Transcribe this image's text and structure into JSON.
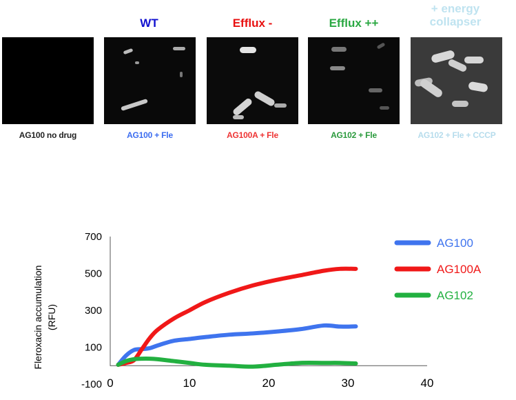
{
  "panels": [
    {
      "heading": "",
      "caption": "AG100 no drug",
      "heading_color": "#000000",
      "caption_color": "#222222",
      "background": "#000000"
    },
    {
      "heading": "WT",
      "caption": "AG100 + Fle",
      "heading_color": "#1010d0",
      "caption_color": "#3b6cf0",
      "background": "#090909"
    },
    {
      "heading": "Efflux -",
      "caption": "AG100A + Fle",
      "heading_color": "#e81010",
      "caption_color": "#ee3333",
      "background": "#0b0b0b"
    },
    {
      "heading": "Efflux ++",
      "caption": "AG102 + Fle",
      "heading_color": "#2aa842",
      "caption_color": "#2a9a3c",
      "background": "#0a0a0a"
    },
    {
      "heading": "+ energy collapser",
      "caption": "AG102 + Fle + CCCP",
      "heading_color": "#bfe3f0",
      "caption_color": "#b6dcec",
      "background": "#3a3a3a"
    }
  ],
  "chart_data": {
    "type": "line",
    "ylabel": "Fleroxacin accumulation (RFU)",
    "xlabel": "",
    "xlim": [
      0,
      40
    ],
    "ylim": [
      -100,
      700
    ],
    "xticks": [
      "0",
      "10",
      "20",
      "30",
      "40"
    ],
    "yticks": [
      "-100",
      "100",
      "300",
      "500",
      "700"
    ],
    "legend_position": "right",
    "series": [
      {
        "name": "AG100",
        "color": "#3f74ee",
        "x": [
          1,
          2,
          3,
          4,
          5,
          6,
          8,
          10,
          12,
          15,
          18,
          21,
          24,
          27,
          29,
          31
        ],
        "y": [
          5,
          55,
          85,
          90,
          95,
          110,
          135,
          145,
          155,
          168,
          175,
          185,
          198,
          218,
          212,
          213
        ]
      },
      {
        "name": "AG100A",
        "color": "#f01818",
        "x": [
          1,
          2,
          3,
          4,
          5,
          6,
          8,
          10,
          12,
          15,
          18,
          21,
          24,
          27,
          29,
          31
        ],
        "y": [
          5,
          15,
          30,
          90,
          150,
          195,
          255,
          300,
          345,
          395,
          435,
          465,
          490,
          515,
          525,
          525
        ]
      },
      {
        "name": "AG102",
        "color": "#22b040",
        "x": [
          1,
          2,
          3,
          4,
          5,
          6,
          8,
          10,
          12,
          15,
          18,
          21,
          24,
          27,
          29,
          31
        ],
        "y": [
          5,
          25,
          35,
          38,
          38,
          35,
          25,
          15,
          5,
          0,
          -5,
          5,
          15,
          15,
          15,
          12
        ]
      }
    ]
  }
}
